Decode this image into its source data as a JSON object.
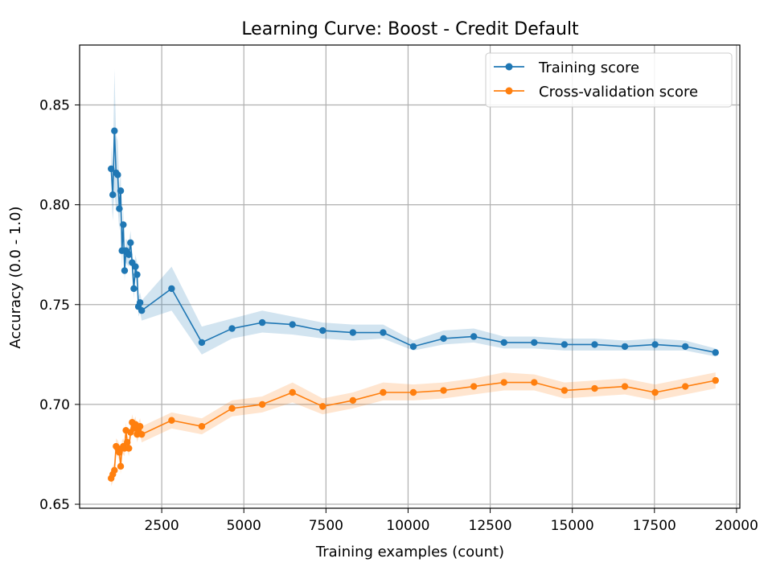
{
  "chart_data": {
    "type": "line",
    "title": "Learning Curve: Boost - Credit Default",
    "xlabel": "Training examples (count)",
    "ylabel": "Accuracy (0.0 - 1.0)",
    "xlim": [
      0,
      20100
    ],
    "ylim": [
      0.648,
      0.88
    ],
    "xticks": [
      2500,
      5000,
      7500,
      10000,
      12500,
      15000,
      17500,
      20000
    ],
    "xtick_labels": [
      "2500",
      "5000",
      "7500",
      "10000",
      "12500",
      "15000",
      "17500",
      "20000"
    ],
    "yticks": [
      0.65,
      0.7,
      0.75,
      0.8,
      0.85
    ],
    "ytick_labels": [
      "0.65",
      "0.70",
      "0.75",
      "0.80",
      "0.85"
    ],
    "grid": true,
    "legend_position": "top-right",
    "series": [
      {
        "name": "Training score",
        "color": "#1f77b4",
        "points": [
          [
            960,
            0.818,
            0.806,
            0.83
          ],
          [
            1010,
            0.805,
            0.792,
            0.818
          ],
          [
            1060,
            0.837,
            0.806,
            0.868
          ],
          [
            1110,
            0.816,
            0.797,
            0.835
          ],
          [
            1160,
            0.815,
            0.798,
            0.832
          ],
          [
            1210,
            0.798,
            0.787,
            0.809
          ],
          [
            1250,
            0.807,
            0.797,
            0.817
          ],
          [
            1290,
            0.777,
            0.769,
            0.785
          ],
          [
            1330,
            0.79,
            0.782,
            0.798
          ],
          [
            1370,
            0.767,
            0.762,
            0.772
          ],
          [
            1410,
            0.777,
            0.771,
            0.783
          ],
          [
            1450,
            0.776,
            0.77,
            0.782
          ],
          [
            1500,
            0.775,
            0.769,
            0.781
          ],
          [
            1550,
            0.781,
            0.775,
            0.787
          ],
          [
            1600,
            0.771,
            0.765,
            0.777
          ],
          [
            1650,
            0.758,
            0.753,
            0.763
          ],
          [
            1700,
            0.769,
            0.763,
            0.775
          ],
          [
            1750,
            0.765,
            0.759,
            0.771
          ],
          [
            1790,
            0.749,
            0.744,
            0.754
          ],
          [
            1840,
            0.751,
            0.746,
            0.756
          ],
          [
            1890,
            0.747,
            0.742,
            0.752
          ],
          [
            2800,
            0.758,
            0.747,
            0.769
          ],
          [
            3720,
            0.731,
            0.725,
            0.739
          ],
          [
            4640,
            0.738,
            0.733,
            0.743
          ],
          [
            5560,
            0.741,
            0.736,
            0.747
          ],
          [
            6480,
            0.74,
            0.735,
            0.744
          ],
          [
            7400,
            0.737,
            0.733,
            0.741
          ],
          [
            8320,
            0.736,
            0.732,
            0.74
          ],
          [
            9240,
            0.736,
            0.733,
            0.74
          ],
          [
            10160,
            0.729,
            0.727,
            0.732
          ],
          [
            11080,
            0.733,
            0.73,
            0.737
          ],
          [
            12000,
            0.734,
            0.731,
            0.738
          ],
          [
            12920,
            0.731,
            0.728,
            0.734
          ],
          [
            13840,
            0.731,
            0.728,
            0.734
          ],
          [
            14760,
            0.73,
            0.727,
            0.733
          ],
          [
            15680,
            0.73,
            0.727,
            0.733
          ],
          [
            16600,
            0.729,
            0.727,
            0.732
          ],
          [
            17520,
            0.73,
            0.727,
            0.733
          ],
          [
            18440,
            0.729,
            0.727,
            0.732
          ],
          [
            19360,
            0.726,
            0.724,
            0.728
          ]
        ]
      },
      {
        "name": "Cross-validation score",
        "color": "#ff7f0e",
        "points": [
          [
            960,
            0.663,
            0.659,
            0.667
          ],
          [
            1010,
            0.665,
            0.661,
            0.669
          ],
          [
            1060,
            0.667,
            0.663,
            0.671
          ],
          [
            1110,
            0.679,
            0.675,
            0.683
          ],
          [
            1160,
            0.678,
            0.674,
            0.682
          ],
          [
            1210,
            0.676,
            0.672,
            0.68
          ],
          [
            1250,
            0.669,
            0.665,
            0.673
          ],
          [
            1290,
            0.678,
            0.674,
            0.682
          ],
          [
            1330,
            0.679,
            0.675,
            0.683
          ],
          [
            1370,
            0.678,
            0.674,
            0.682
          ],
          [
            1410,
            0.687,
            0.683,
            0.691
          ],
          [
            1450,
            0.681,
            0.677,
            0.685
          ],
          [
            1500,
            0.678,
            0.674,
            0.682
          ],
          [
            1550,
            0.686,
            0.682,
            0.69
          ],
          [
            1600,
            0.691,
            0.687,
            0.695
          ],
          [
            1650,
            0.688,
            0.684,
            0.692
          ],
          [
            1700,
            0.69,
            0.686,
            0.694
          ],
          [
            1750,
            0.685,
            0.681,
            0.689
          ],
          [
            1790,
            0.687,
            0.683,
            0.691
          ],
          [
            1840,
            0.689,
            0.685,
            0.693
          ],
          [
            1890,
            0.685,
            0.681,
            0.689
          ],
          [
            2800,
            0.692,
            0.688,
            0.696
          ],
          [
            3720,
            0.689,
            0.685,
            0.693
          ],
          [
            4640,
            0.698,
            0.694,
            0.702
          ],
          [
            5560,
            0.7,
            0.696,
            0.704
          ],
          [
            6480,
            0.706,
            0.701,
            0.711
          ],
          [
            7400,
            0.699,
            0.695,
            0.703
          ],
          [
            8320,
            0.702,
            0.698,
            0.706
          ],
          [
            9240,
            0.706,
            0.702,
            0.711
          ],
          [
            10160,
            0.706,
            0.702,
            0.71
          ],
          [
            11080,
            0.707,
            0.703,
            0.711
          ],
          [
            12000,
            0.709,
            0.705,
            0.713
          ],
          [
            12920,
            0.711,
            0.707,
            0.716
          ],
          [
            13840,
            0.711,
            0.707,
            0.715
          ],
          [
            14760,
            0.707,
            0.703,
            0.711
          ],
          [
            15680,
            0.708,
            0.704,
            0.712
          ],
          [
            16600,
            0.709,
            0.705,
            0.713
          ],
          [
            17520,
            0.706,
            0.702,
            0.71
          ],
          [
            18440,
            0.709,
            0.705,
            0.713
          ],
          [
            19360,
            0.712,
            0.708,
            0.716
          ]
        ]
      }
    ]
  }
}
